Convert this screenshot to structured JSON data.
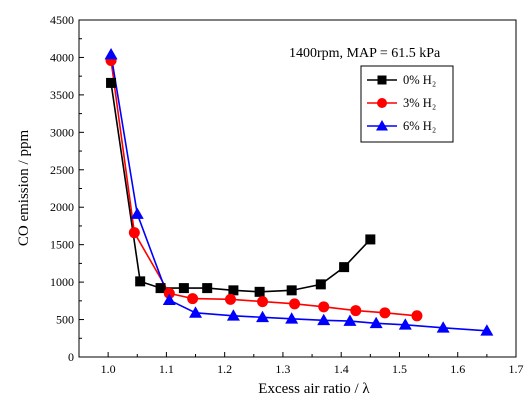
{
  "chart_data": {
    "type": "line",
    "title": "",
    "annotation": "1400rpm, MAP = 61.5 kPa",
    "xlabel": "Excess air ratio / λ",
    "ylabel": "CO emission / ppm",
    "xlim": [
      0.95,
      1.7
    ],
    "ylim": [
      0,
      4500
    ],
    "xticks": [
      "1.0",
      "1.1",
      "1.2",
      "1.3",
      "1.4",
      "1.5",
      "1.6",
      "1.7"
    ],
    "xtick_values": [
      1.0,
      1.1,
      1.2,
      1.3,
      1.4,
      1.5,
      1.6,
      1.7
    ],
    "yticks": [
      "0",
      "500",
      "1000",
      "1500",
      "2000",
      "2500",
      "3000",
      "3500",
      "4000",
      "4500"
    ],
    "ytick_values": [
      0,
      500,
      1000,
      1500,
      2000,
      2500,
      3000,
      3500,
      4000,
      4500
    ],
    "grid": false,
    "legend_position": "top-right",
    "series": [
      {
        "name": "0% H₂",
        "color": "#000000",
        "marker": "square",
        "x": [
          1.005,
          1.055,
          1.09,
          1.13,
          1.17,
          1.215,
          1.26,
          1.315,
          1.365,
          1.405,
          1.45
        ],
        "y": [
          3660,
          1010,
          920,
          920,
          920,
          890,
          870,
          890,
          970,
          1200,
          1570
        ]
      },
      {
        "name": "3% H₂",
        "color": "#ff0000",
        "marker": "circle",
        "x": [
          1.005,
          1.045,
          1.105,
          1.145,
          1.21,
          1.265,
          1.32,
          1.37,
          1.425,
          1.475,
          1.53
        ],
        "y": [
          3960,
          1660,
          850,
          780,
          770,
          740,
          710,
          670,
          620,
          590,
          550
        ]
      },
      {
        "name": "6% H₂",
        "color": "#0000ff",
        "marker": "triangle",
        "x": [
          1.005,
          1.05,
          1.105,
          1.15,
          1.215,
          1.265,
          1.315,
          1.37,
          1.415,
          1.46,
          1.51,
          1.575,
          1.65
        ],
        "y": [
          4040,
          1910,
          760,
          590,
          550,
          530,
          510,
          490,
          480,
          450,
          430,
          390,
          350
        ]
      }
    ]
  }
}
